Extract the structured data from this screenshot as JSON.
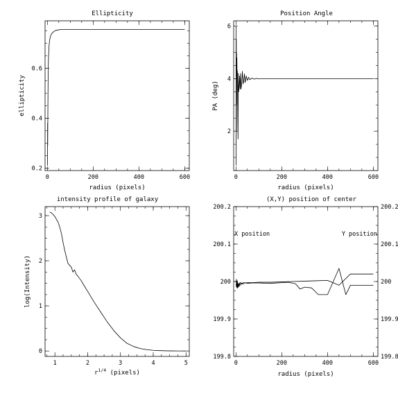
{
  "chart_data": [
    {
      "id": "ellipticity",
      "type": "line",
      "title": "Ellipticity",
      "xlabel": "radius (pixels)",
      "ylabel": "ellipticity",
      "xlim": [
        -10,
        620
      ],
      "ylim": [
        0.19,
        0.79
      ],
      "x_ticks": [
        0,
        200,
        400,
        600
      ],
      "y_ticks": [
        0.2,
        0.4,
        0.6
      ],
      "x_tick_labels": [
        "0",
        "200",
        "400",
        "600"
      ],
      "y_tick_labels": [
        "0.2",
        "0.4",
        "0.6"
      ],
      "series": [
        {
          "x": [
            0.5,
            1,
            1.5,
            2,
            2.5,
            3,
            3.5,
            4,
            5,
            6,
            7,
            8,
            10,
            12,
            15,
            18,
            22,
            26,
            30,
            35,
            40,
            45,
            50,
            60,
            70,
            80,
            100,
            150,
            200,
            300,
            400,
            500,
            600
          ],
          "y": [
            0.21,
            0.38,
            0.29,
            0.39,
            0.47,
            0.53,
            0.58,
            0.61,
            0.64,
            0.665,
            0.683,
            0.697,
            0.712,
            0.722,
            0.731,
            0.737,
            0.742,
            0.745,
            0.748,
            0.751,
            0.752,
            0.753,
            0.754,
            0.755,
            0.755,
            0.755,
            0.755,
            0.755,
            0.755,
            0.755,
            0.755,
            0.755,
            0.755
          ]
        }
      ]
    },
    {
      "id": "position-angle",
      "type": "line",
      "title": "Position Angle",
      "xlabel": "radius (pixels)",
      "ylabel": "PA (deg)",
      "xlim": [
        -10,
        620
      ],
      "ylim": [
        0.5,
        6.2
      ],
      "x_ticks": [
        0,
        200,
        400,
        600
      ],
      "y_ticks": [
        2,
        4,
        6
      ],
      "x_tick_labels": [
        "0",
        "200",
        "400",
        "600"
      ],
      "y_tick_labels": [
        "2",
        "4",
        "6"
      ],
      "series": [
        {
          "x": [
            0.5,
            1,
            1.5,
            2,
            2.5,
            3,
            4,
            5,
            6,
            7,
            8,
            9,
            10,
            12,
            14,
            16,
            18,
            20,
            22,
            25,
            28,
            31,
            34,
            37,
            40,
            45,
            50,
            55,
            60,
            70,
            80,
            90,
            100,
            120,
            140,
            160,
            180,
            200,
            250,
            300,
            350,
            400,
            450,
            500,
            550,
            600
          ],
          "y": [
            6.0,
            0.7,
            5.5,
            2.0,
            5.0,
            3.0,
            4.8,
            4.1,
            4.3,
            3.6,
            2.5,
            1.7,
            4.2,
            3.5,
            3.7,
            4.1,
            3.6,
            4.2,
            3.6,
            3.8,
            4.28,
            3.8,
            3.9,
            4.18,
            3.85,
            4.1,
            3.93,
            4.05,
            3.96,
            4.02,
            3.98,
            4.01,
            3.99,
            4.0,
            4.0,
            4.0,
            4.0,
            4.0,
            4.0,
            4.0,
            4.0,
            4.0,
            4.0,
            4.0,
            4.0,
            4.0
          ]
        }
      ]
    },
    {
      "id": "intensity-profile",
      "type": "line",
      "title": "intensity profile of galaxy",
      "xlabel": "r^(1/4) (pixels)",
      "xlabel_main": "r",
      "xlabel_sup": "1/4",
      "xlabel_rest": " (pixels)",
      "ylabel": "log(Intensity)",
      "xlim": [
        0.7,
        5.1
      ],
      "ylim": [
        -0.12,
        3.2
      ],
      "x_ticks": [
        1,
        2,
        3,
        4,
        5
      ],
      "y_ticks": [
        0,
        1,
        2,
        3
      ],
      "x_tick_labels": [
        "1",
        "2",
        "3",
        "4",
        "5"
      ],
      "y_tick_labels": [
        "0",
        "1",
        "2",
        "3"
      ],
      "series": [
        {
          "x": [
            0.84,
            0.9,
            1.0,
            1.1,
            1.15,
            1.2,
            1.25,
            1.3,
            1.35,
            1.4,
            1.45,
            1.5,
            1.55,
            1.6,
            1.65,
            1.7,
            1.8,
            1.9,
            2.0,
            2.2,
            2.4,
            2.6,
            2.8,
            3.0,
            3.2,
            3.4,
            3.6,
            3.8,
            4.0,
            4.2,
            4.4,
            4.6,
            4.8,
            5.0
          ],
          "y": [
            3.08,
            3.06,
            2.98,
            2.85,
            2.74,
            2.6,
            2.4,
            2.23,
            2.08,
            1.94,
            1.9,
            1.86,
            1.75,
            1.8,
            1.7,
            1.66,
            1.56,
            1.44,
            1.32,
            1.08,
            0.86,
            0.64,
            0.45,
            0.29,
            0.17,
            0.1,
            0.055,
            0.03,
            0.015,
            0.008,
            0.004,
            0.002,
            0.001,
            0.0
          ]
        }
      ]
    },
    {
      "id": "xy-center",
      "type": "line",
      "title": "(X,Y) position of center",
      "xlabel": "radius (pixels)",
      "xlim": [
        -10,
        620
      ],
      "ylim": [
        199.8,
        200.2
      ],
      "x_ticks": [
        0,
        200,
        400,
        600
      ],
      "y_ticks": [
        199.8,
        199.9,
        200,
        200.1,
        200.2
      ],
      "x_tick_labels": [
        "0",
        "200",
        "400",
        "600"
      ],
      "y_tick_labels": [
        "199.8",
        "199.9",
        "200",
        "200.1",
        "200.2"
      ],
      "y2_tick_labels": [
        "199.8",
        "199.9",
        "200",
        "200.1",
        "200.2"
      ],
      "annotations": [
        "X position",
        "Y position"
      ],
      "series": [
        {
          "name": "X position",
          "x": [
            0.5,
            2,
            4,
            6,
            8,
            10,
            14,
            18,
            24,
            30,
            40,
            50,
            70,
            100,
            150,
            200,
            250,
            300,
            350,
            400,
            450,
            500,
            550,
            600
          ],
          "y": [
            199.997,
            200.006,
            199.985,
            200.002,
            199.984,
            199.995,
            199.987,
            199.998,
            199.993,
            199.997,
            199.996,
            199.997,
            199.997,
            199.998,
            199.998,
            199.999,
            200.0,
            200.001,
            200.002,
            200.003,
            199.99,
            200.02,
            200.02,
            200.02
          ]
        },
        {
          "name": "Y position",
          "x": [
            0.5,
            2,
            4,
            6,
            8,
            10,
            14,
            18,
            24,
            30,
            40,
            50,
            70,
            100,
            150,
            200,
            230,
            260,
            280,
            300,
            330,
            360,
            400,
            450,
            480,
            500,
            550,
            600
          ],
          "y": [
            199.995,
            199.985,
            200.0,
            199.982,
            199.993,
            199.985,
            199.995,
            199.99,
            199.996,
            199.993,
            199.997,
            199.995,
            199.996,
            199.996,
            199.995,
            199.997,
            199.998,
            199.994,
            199.98,
            199.985,
            199.983,
            199.965,
            199.965,
            200.035,
            199.965,
            199.99,
            199.99,
            199.99
          ]
        }
      ]
    }
  ]
}
